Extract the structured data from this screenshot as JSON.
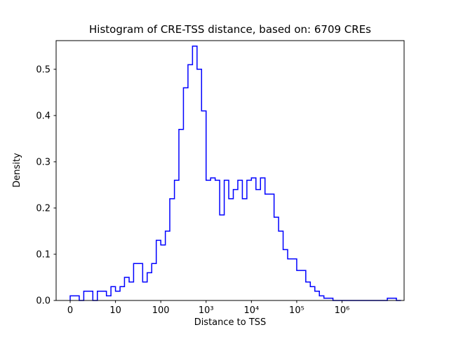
{
  "chart_data": {
    "type": "histogram",
    "title": "Histogram of CRE-TSS distance, based on: 6709 CREs",
    "xlabel": "Distance to TSS",
    "ylabel": "Density",
    "x_scale": "symlog",
    "linthresh": 10,
    "line_color": "#0000ff",
    "ylim": [
      0,
      0.562
    ],
    "xlim_symlog_units": [
      -0.31,
      7.37
    ],
    "grid": false,
    "legend": null,
    "x_ticks": [
      {
        "value": 0,
        "label": "0"
      },
      {
        "value": 10,
        "label": "10"
      },
      {
        "value": 100,
        "label": "100"
      },
      {
        "value": 1000,
        "label": "10³"
      },
      {
        "value": 10000,
        "label": "10⁴"
      },
      {
        "value": 100000,
        "label": "10⁵"
      },
      {
        "value": 1000000,
        "label": "10⁶"
      }
    ],
    "y_ticks": [
      {
        "value": 0.0,
        "label": "0.0"
      },
      {
        "value": 0.1,
        "label": "0.1"
      },
      {
        "value": 0.2,
        "label": "0.2"
      },
      {
        "value": 0.3,
        "label": "0.3"
      },
      {
        "value": 0.4,
        "label": "0.4"
      },
      {
        "value": 0.5,
        "label": "0.5"
      }
    ],
    "bin_edges": [
      0,
      1,
      2,
      3,
      4,
      5,
      6,
      7,
      8,
      9,
      10,
      12.6,
      15.8,
      20,
      25.1,
      31.6,
      39.8,
      50.1,
      63.1,
      79.4,
      100,
      126,
      158,
      200,
      251,
      316,
      398,
      501,
      631,
      794,
      1000,
      1259,
      1585,
      1995,
      2512,
      3162,
      3981,
      5012,
      6310,
      7943,
      10000,
      12589,
      15849,
      19953,
      25119,
      31623,
      39811,
      50119,
      63096,
      79433,
      100000,
      125893,
      158489,
      199526,
      251189,
      316228,
      398107,
      501187,
      630957,
      794328,
      1000000,
      1258925,
      1584893,
      1995262,
      2511886,
      3162278,
      3981072,
      5011872,
      6309573,
      7943282,
      10000000,
      12589254,
      15848932,
      19952623
    ],
    "densities": [
      0.01,
      0.01,
      0,
      0.02,
      0.02,
      0,
      0.02,
      0.02,
      0.01,
      0.03,
      0.02,
      0.03,
      0.05,
      0.04,
      0.08,
      0.08,
      0.04,
      0.06,
      0.08,
      0.13,
      0.12,
      0.15,
      0.22,
      0.26,
      0.37,
      0.46,
      0.51,
      0.55,
      0.5,
      0.41,
      0.26,
      0.265,
      0.26,
      0.185,
      0.26,
      0.22,
      0.24,
      0.26,
      0.22,
      0.26,
      0.265,
      0.24,
      0.265,
      0.23,
      0.23,
      0.18,
      0.15,
      0.11,
      0.09,
      0.09,
      0.065,
      0.065,
      0.04,
      0.03,
      0.02,
      0.01,
      0.005,
      0.005,
      0,
      0,
      0,
      0,
      0,
      0,
      0,
      0,
      0,
      0,
      0,
      0,
      0.005,
      0.005,
      0
    ]
  }
}
